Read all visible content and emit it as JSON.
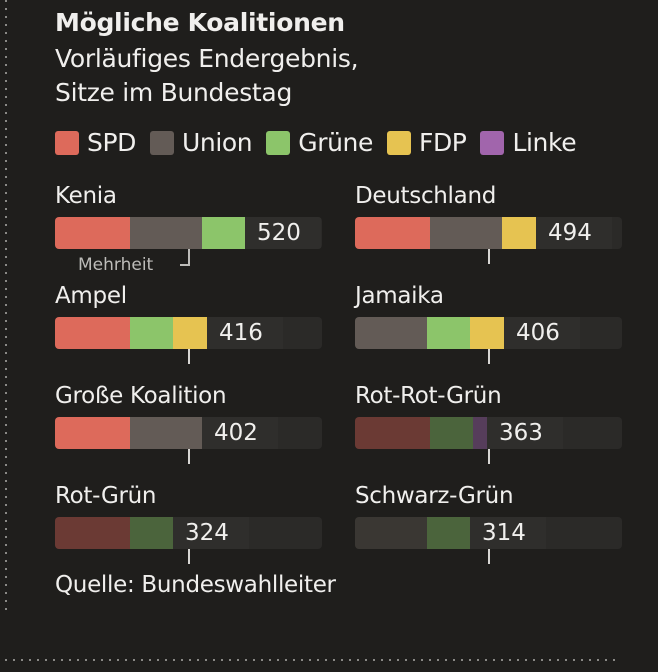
{
  "header": {
    "title": "Mögliche Koalitionen",
    "subtitle_line1": "Vorläufiges Endergebnis,",
    "subtitle_line2": "Sitze im Bundestag"
  },
  "legend": [
    {
      "key": "spd",
      "label": "SPD",
      "color": "#dd6a5b"
    },
    {
      "key": "union",
      "label": "Union",
      "color": "#635b56"
    },
    {
      "key": "gruene",
      "label": "Grüne",
      "color": "#8cc56a"
    },
    {
      "key": "fdp",
      "label": "FDP",
      "color": "#e6c351"
    },
    {
      "key": "linke",
      "label": "Linke",
      "color": "#a165ac"
    }
  ],
  "dim_colors": {
    "spd": "#6b3a34",
    "union": "#3a3733",
    "gruene": "#4b643c",
    "fdp": "#6e5f33",
    "linke": "#563d5b"
  },
  "majority_label": "Mehrheit",
  "source": "Quelle: Bundeswahlleiter",
  "chart_data": {
    "type": "bar",
    "title": "Mögliche Koalitionen",
    "subtitle": "Vorläufiges Endergebnis, Sitze im Bundestag",
    "orientation": "horizontal-stacked",
    "majority_threshold": 368,
    "xlim": [
      0,
      735
    ],
    "seats": {
      "spd": 206,
      "union": 196,
      "gruene": 118,
      "fdp": 92,
      "linke": 39
    },
    "coalitions": [
      {
        "name": "Kenia",
        "parties": [
          "spd",
          "union",
          "gruene"
        ],
        "total": 520,
        "majority": true
      },
      {
        "name": "Deutschland",
        "parties": [
          "spd",
          "union",
          "fdp"
        ],
        "total": 494,
        "majority": true
      },
      {
        "name": "Ampel",
        "parties": [
          "spd",
          "gruene",
          "fdp"
        ],
        "total": 416,
        "majority": true
      },
      {
        "name": "Jamaika",
        "parties": [
          "union",
          "gruene",
          "fdp"
        ],
        "total": 406,
        "majority": true
      },
      {
        "name": "Große Koalition",
        "parties": [
          "spd",
          "union"
        ],
        "total": 402,
        "majority": true
      },
      {
        "name": "Rot-Rot-Grün",
        "parties": [
          "spd",
          "gruene",
          "linke"
        ],
        "total": 363,
        "majority": false
      },
      {
        "name": "Rot-Grün",
        "parties": [
          "spd",
          "gruene"
        ],
        "total": 324,
        "majority": false
      },
      {
        "name": "Schwarz-Grün",
        "parties": [
          "union",
          "gruene"
        ],
        "total": 314,
        "majority": false
      }
    ]
  }
}
